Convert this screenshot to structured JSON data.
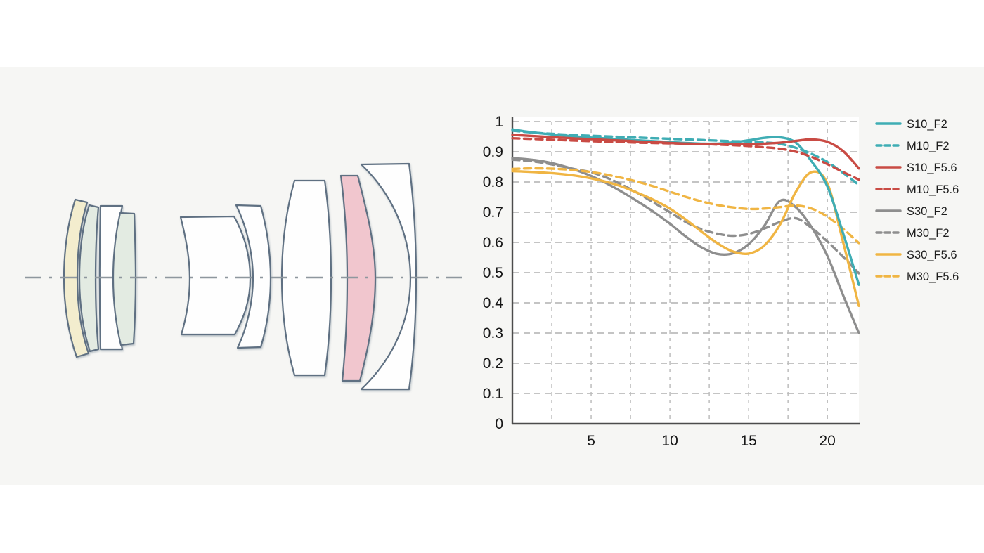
{
  "canvas": {
    "background": "#ffffff",
    "panel_background": "#f6f6f4"
  },
  "lens": {
    "axis_color": "#8e979e",
    "outline_color": "#5e7082",
    "fills": {
      "cream": "#f3edce",
      "green": "#e3ebe2",
      "white": "#fefefe",
      "pink": "#f1c6ce"
    }
  },
  "chart_data": {
    "type": "line",
    "title": "",
    "xlabel": "",
    "ylabel": "",
    "xlim": [
      0,
      22
    ],
    "ylim": [
      0,
      1
    ],
    "grid": true,
    "legend_position": "right",
    "xticks": {
      "values": [
        5,
        10,
        15,
        20
      ],
      "labels": [
        "5",
        "10",
        "15",
        "20"
      ]
    },
    "yticks": {
      "values": [
        0,
        0.1,
        0.2,
        0.3,
        0.4,
        0.5,
        0.6,
        0.7,
        0.8,
        0.9,
        1
      ],
      "labels": [
        "0",
        "0.1",
        "0.2",
        "0.3",
        "0.4",
        "0.5",
        "0.6",
        "0.7",
        "0.8",
        "0.9",
        "1"
      ]
    },
    "gridlines": {
      "x_values": [
        2.5,
        5,
        7.5,
        10,
        12.5,
        15,
        17.5,
        20
      ],
      "y_values": [
        0.1,
        0.2,
        0.3,
        0.4,
        0.5,
        0.6,
        0.7,
        0.8,
        0.9,
        1
      ]
    },
    "x": [
      0,
      1,
      2,
      3,
      4,
      5,
      6,
      7,
      8,
      9,
      10,
      11,
      12,
      13,
      14,
      15,
      16,
      17,
      18,
      19,
      20,
      21,
      22
    ],
    "series": [
      {
        "name": "S10_F2",
        "color": "#3fadb4",
        "style": "solid",
        "values": [
          0.974,
          0.966,
          0.96,
          0.955,
          0.951,
          0.947,
          0.944,
          0.941,
          0.938,
          0.935,
          0.932,
          0.929,
          0.927,
          0.927,
          0.931,
          0.938,
          0.946,
          0.948,
          0.93,
          0.868,
          0.785,
          0.63,
          0.46
        ]
      },
      {
        "name": "M10_F2",
        "color": "#3fadb4",
        "style": "dashed",
        "values": [
          0.97,
          0.965,
          0.961,
          0.958,
          0.955,
          0.953,
          0.951,
          0.949,
          0.947,
          0.945,
          0.943,
          0.941,
          0.939,
          0.937,
          0.935,
          0.934,
          0.931,
          0.926,
          0.913,
          0.893,
          0.866,
          0.83,
          0.79
        ]
      },
      {
        "name": "S10_F5.6",
        "color": "#c94b44",
        "style": "solid",
        "values": [
          0.956,
          0.953,
          0.95,
          0.947,
          0.944,
          0.942,
          0.939,
          0.937,
          0.934,
          0.932,
          0.929,
          0.927,
          0.926,
          0.925,
          0.925,
          0.925,
          0.927,
          0.93,
          0.936,
          0.941,
          0.933,
          0.902,
          0.845
        ]
      },
      {
        "name": "M10_F5.6",
        "color": "#c94b44",
        "style": "dashed",
        "values": [
          0.945,
          0.943,
          0.941,
          0.939,
          0.937,
          0.935,
          0.933,
          0.932,
          0.93,
          0.929,
          0.928,
          0.927,
          0.926,
          0.924,
          0.922,
          0.919,
          0.915,
          0.91,
          0.9,
          0.883,
          0.859,
          0.833,
          0.808
        ]
      },
      {
        "name": "S30_F2",
        "color": "#8e8e8e",
        "style": "solid",
        "values": [
          0.879,
          0.875,
          0.868,
          0.856,
          0.84,
          0.82,
          0.795,
          0.766,
          0.734,
          0.7,
          0.662,
          0.62,
          0.584,
          0.562,
          0.564,
          0.594,
          0.655,
          0.738,
          0.716,
          0.65,
          0.555,
          0.425,
          0.3
        ]
      },
      {
        "name": "M30_F2",
        "color": "#8e8e8e",
        "style": "dashed",
        "values": [
          0.874,
          0.87,
          0.863,
          0.853,
          0.842,
          0.832,
          0.814,
          0.79,
          0.762,
          0.731,
          0.7,
          0.668,
          0.644,
          0.629,
          0.622,
          0.628,
          0.646,
          0.668,
          0.68,
          0.648,
          0.603,
          0.552,
          0.498
        ]
      },
      {
        "name": "S30_F5.6",
        "color": "#f0b543",
        "style": "solid",
        "values": [
          0.836,
          0.834,
          0.831,
          0.827,
          0.821,
          0.812,
          0.8,
          0.784,
          0.763,
          0.74,
          0.712,
          0.676,
          0.636,
          0.598,
          0.57,
          0.563,
          0.59,
          0.66,
          0.768,
          0.833,
          0.795,
          0.6,
          0.39
        ]
      },
      {
        "name": "M30_F5.6",
        "color": "#f0b543",
        "style": "dashed",
        "values": [
          0.843,
          0.845,
          0.845,
          0.843,
          0.839,
          0.833,
          0.824,
          0.813,
          0.8,
          0.785,
          0.768,
          0.751,
          0.736,
          0.724,
          0.716,
          0.711,
          0.712,
          0.717,
          0.722,
          0.712,
          0.685,
          0.645,
          0.598
        ]
      }
    ]
  }
}
